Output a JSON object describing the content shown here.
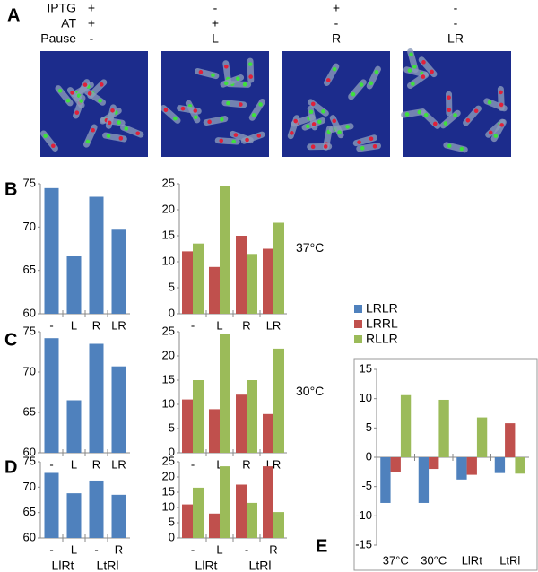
{
  "panel_labels": [
    "A",
    "B",
    "C",
    "D",
    "E"
  ],
  "panel_a": {
    "row_labels": [
      "IPTG",
      "AT",
      "Pause"
    ],
    "columns": [
      [
        "+",
        "+",
        "-"
      ],
      [
        "-",
        "+",
        "L"
      ],
      [
        "+",
        "-",
        "R"
      ],
      [
        "-",
        "-",
        "LR"
      ]
    ]
  },
  "chart_data": [
    {
      "type": "bar",
      "categories": [
        "-",
        "L",
        "R",
        "LR"
      ],
      "values": [
        74.5,
        66.7,
        73.5,
        69.8
      ],
      "color": "#4f81bd",
      "ylim": [
        60,
        75
      ],
      "yticks": [
        60,
        65,
        70,
        75
      ]
    },
    {
      "type": "bar",
      "categories": [
        "-",
        "L",
        "R",
        "LR"
      ],
      "series": [
        {
          "color": "#c0504d",
          "values": [
            12,
            9,
            15,
            12.5
          ]
        },
        {
          "color": "#9bbb59",
          "values": [
            13.5,
            24.5,
            11.5,
            17.5
          ]
        }
      ],
      "ylim": [
        0,
        25
      ],
      "yticks": [
        0,
        5,
        10,
        15,
        20,
        25
      ],
      "annotation": "37°C"
    },
    {
      "type": "bar",
      "categories": [
        "-",
        "L",
        "R",
        "LR"
      ],
      "values": [
        74.2,
        66.5,
        73.5,
        70.7
      ],
      "color": "#4f81bd",
      "ylim": [
        60,
        75
      ],
      "yticks": [
        60,
        65,
        70,
        75
      ]
    },
    {
      "type": "bar",
      "categories": [
        "-",
        "L",
        "R",
        "LR"
      ],
      "series": [
        {
          "color": "#c0504d",
          "values": [
            11,
            9,
            12,
            8
          ]
        },
        {
          "color": "#9bbb59",
          "values": [
            15,
            24.5,
            15,
            21.5
          ]
        }
      ],
      "ylim": [
        0,
        25
      ],
      "yticks": [
        0,
        5,
        10,
        15,
        20,
        25
      ],
      "annotation": "30°C"
    },
    {
      "type": "bar",
      "categories": [
        "-",
        "L",
        "-",
        "R"
      ],
      "group_labels": [
        "LlRt",
        "LtRl"
      ],
      "values": [
        72.8,
        68.8,
        71.3,
        68.5
      ],
      "color": "#4f81bd",
      "ylim": [
        60,
        75
      ],
      "yticks": [
        60,
        65,
        70,
        75
      ]
    },
    {
      "type": "bar",
      "categories": [
        "-",
        "L",
        "-",
        "R"
      ],
      "group_labels": [
        "LlRt",
        "LtRl"
      ],
      "series": [
        {
          "color": "#c0504d",
          "values": [
            11,
            8,
            17.5,
            23.5
          ]
        },
        {
          "color": "#9bbb59",
          "values": [
            16.5,
            23.5,
            11.5,
            8.5
          ]
        }
      ],
      "ylim": [
        0,
        25
      ],
      "yticks": [
        0,
        5,
        10,
        15,
        20,
        25
      ]
    },
    {
      "type": "bar",
      "categories": [
        "37°C",
        "30°C",
        "LlRt",
        "LtRl"
      ],
      "series": [
        {
          "name": "LRLR",
          "color": "#4f81bd",
          "values": [
            -7.8,
            -7.8,
            -3.8,
            -2.7
          ]
        },
        {
          "name": "LRRL",
          "color": "#c0504d",
          "values": [
            -2.6,
            -2,
            -3,
            5.8
          ]
        },
        {
          "name": "RLLR",
          "color": "#9bbb59",
          "values": [
            10.6,
            9.8,
            6.8,
            -2.8
          ]
        }
      ],
      "ylim": [
        -15,
        15
      ],
      "yticks": [
        -15,
        -10,
        -5,
        0,
        5,
        10,
        15
      ],
      "legend": true
    }
  ]
}
